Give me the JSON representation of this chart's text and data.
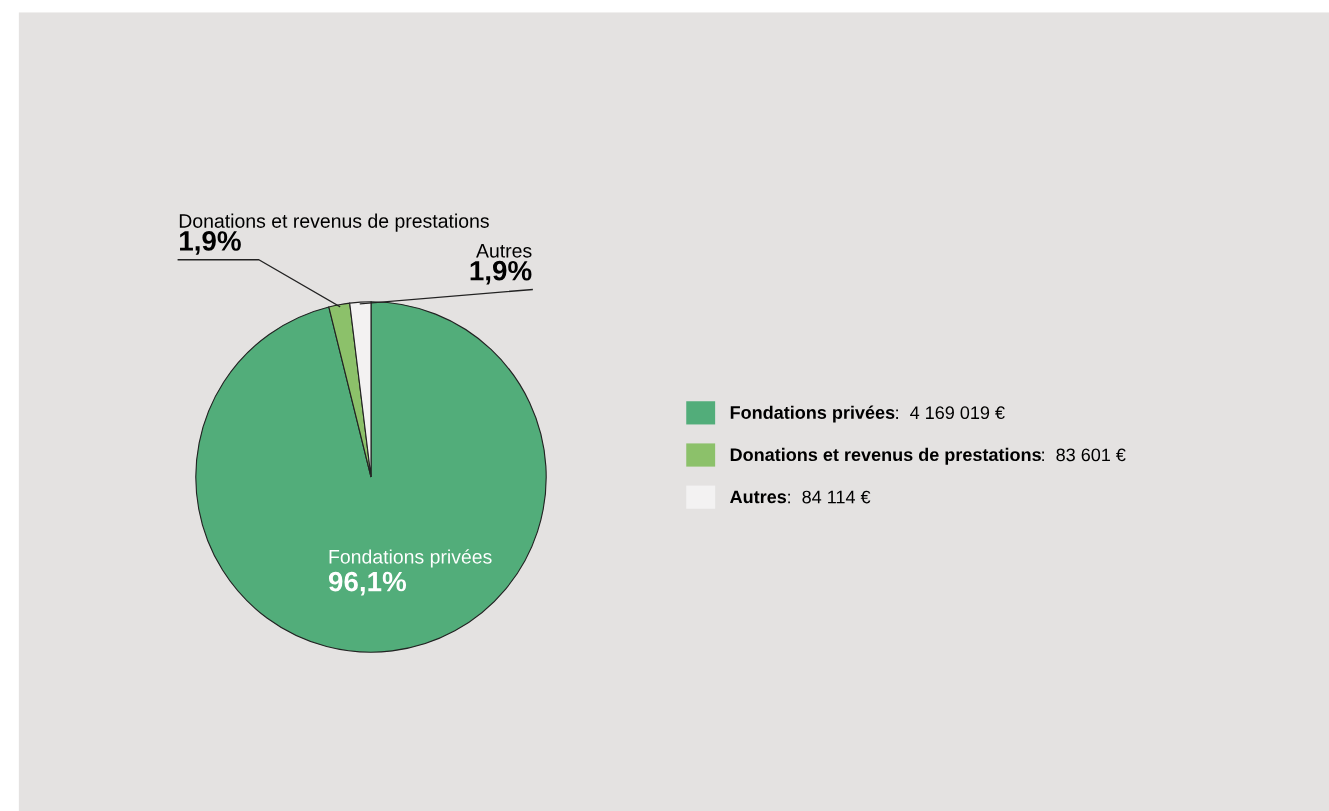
{
  "chart_data": {
    "type": "pie",
    "categories": [
      "Fondations privées",
      "Donations et revenus de prestations",
      "Autres"
    ],
    "values": [
      96.13,
      1.93,
      1.94
    ],
    "colors": [
      "#52ad7a",
      "#8cc16a",
      "#f3f2f2"
    ],
    "value_labels": [
      "96,1%",
      "1,9%",
      "1,9%"
    ],
    "annotations": [
      ":  4 169 019 €",
      ":  83 601 €",
      ":  84 114 €"
    ],
    "legend": "right"
  }
}
